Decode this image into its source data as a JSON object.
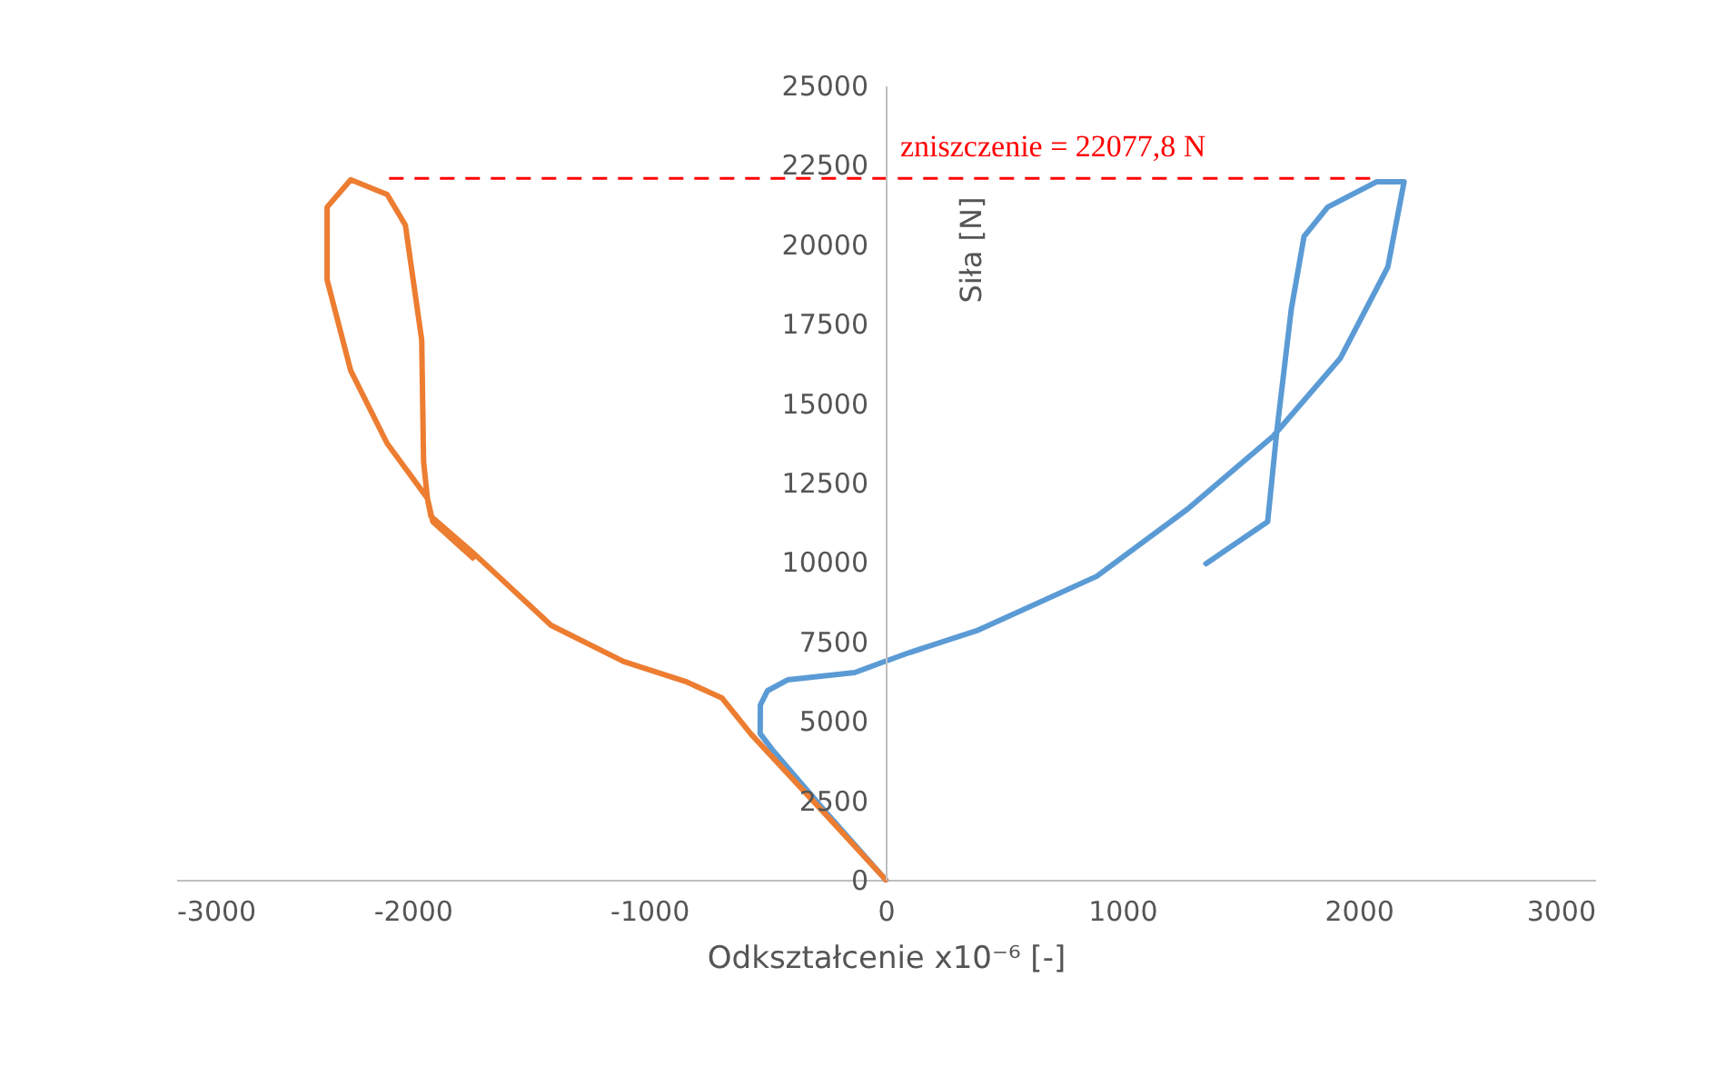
{
  "chart_data": {
    "type": "line",
    "xlabel": "Odkształcenie x10⁻⁶ [-]",
    "ylabel": "Siła [N]",
    "xlim": [
      -3000,
      3000
    ],
    "xticks": [
      -3000,
      -2000,
      -1000,
      0,
      1000,
      2000,
      3000
    ],
    "ylim": [
      0,
      25000
    ],
    "yticks": [
      0,
      2500,
      5000,
      7500,
      10000,
      12500,
      15000,
      17500,
      20000,
      22500,
      25000
    ],
    "grid": false,
    "marker": "none",
    "line_style": "solid",
    "series": [
      {
        "color": "#5b9bd5",
        "x": [
          0,
          -250,
          -480,
          -531,
          -530,
          -500,
          -415,
          -131,
          -30,
          100,
          385,
          892,
          1277,
          1638,
          1923,
          2123,
          2192,
          2077,
          1869,
          1769,
          1715,
          1654,
          1615,
          1354
        ],
        "values": [
          0,
          2100,
          4100,
          4600,
          5500,
          5950,
          6290,
          6520,
          6800,
          7150,
          7840,
          9550,
          11670,
          13960,
          16420,
          19280,
          21970,
          21970,
          21170,
          20250,
          17960,
          14130,
          11270,
          9950
        ]
      },
      {
        "color": "#ed7d31",
        "x": [
          0,
          -262,
          -569,
          -692,
          -846,
          -1108,
          -1415,
          -1746,
          -1923,
          -1938,
          -1954,
          -1962,
          -2031,
          -2108,
          -2262,
          -2362,
          -2362,
          -2262,
          -2108,
          -1938,
          -1915,
          -1746
        ],
        "values": [
          0,
          2120,
          4580,
          5720,
          6240,
          6870,
          8010,
          10300,
          11440,
          12010,
          13160,
          16990,
          20600,
          21570,
          22030,
          21170,
          18880,
          16020,
          13730,
          12010,
          11270,
          10130
        ]
      }
    ],
    "ref_lines": [
      {
        "axis": "y",
        "value": 22077.8,
        "label": "zniszczenie = 22077,8 N",
        "color": "#ff0000",
        "line_style": "dashed"
      }
    ]
  }
}
